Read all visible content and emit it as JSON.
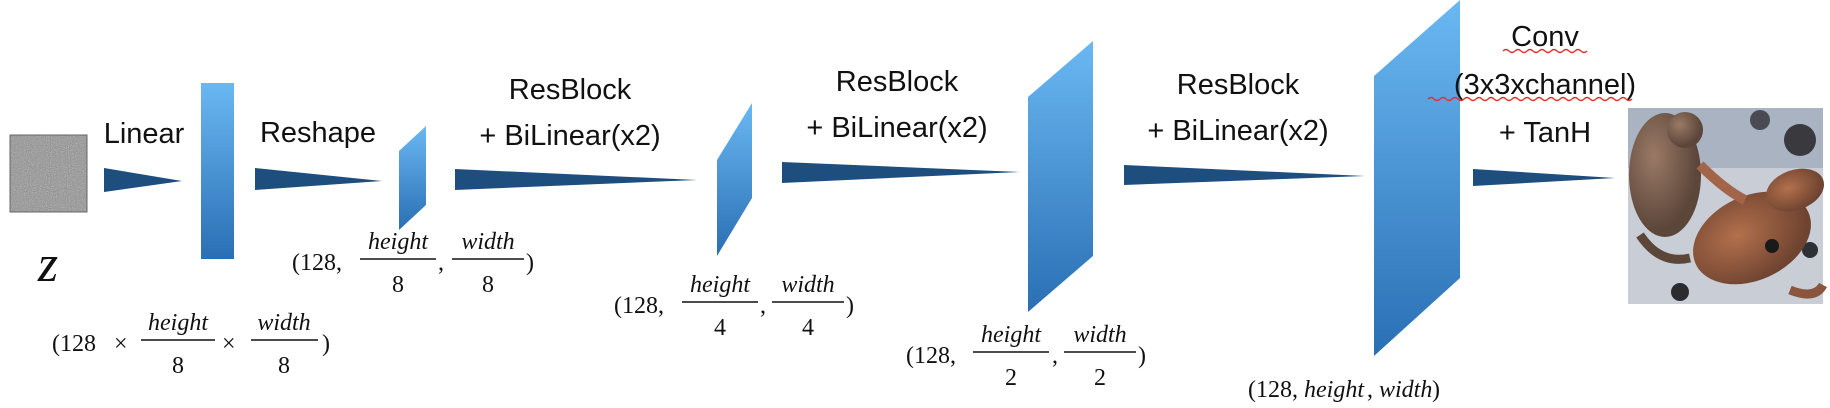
{
  "diagram": {
    "input_symbol": "z",
    "operations": {
      "linear": "Linear",
      "reshape": "Reshape",
      "resblock1": [
        "ResBlock",
        "+ BiLinear(x2)"
      ],
      "resblock2": [
        "ResBlock",
        "+ BiLinear(x2)"
      ],
      "resblock3": [
        "ResBlock",
        "+ BiLinear(x2)"
      ],
      "conv": [
        "Conv",
        "(3x3xchannel)",
        "+ TanH"
      ]
    },
    "shapes": {
      "flat": {
        "open": "(128",
        "times": "×",
        "num1": "height",
        "den1": "8",
        "num2": "width",
        "den2": "8",
        "close": ")"
      },
      "s8": {
        "open": "(128,",
        "num1": "height",
        "den1": "8",
        "comma": ",",
        "num2": "width",
        "den2": "8",
        "close": ")"
      },
      "s4": {
        "open": "(128,",
        "num1": "height",
        "den1": "4",
        "comma": ",",
        "num2": "width",
        "den2": "4",
        "close": ")"
      },
      "s2": {
        "open": "(128,",
        "num1": "height",
        "den1": "2",
        "comma": ",",
        "num2": "width",
        "den2": "2",
        "close": ")"
      },
      "full": {
        "open": "(128,",
        "h": "height",
        "comma": ",",
        "w": "width",
        "close": ")"
      }
    },
    "colors": {
      "arrow": "#1d4e7e",
      "block_top": "#6ab8f2",
      "block_bottom": "#2a6fb4"
    }
  }
}
